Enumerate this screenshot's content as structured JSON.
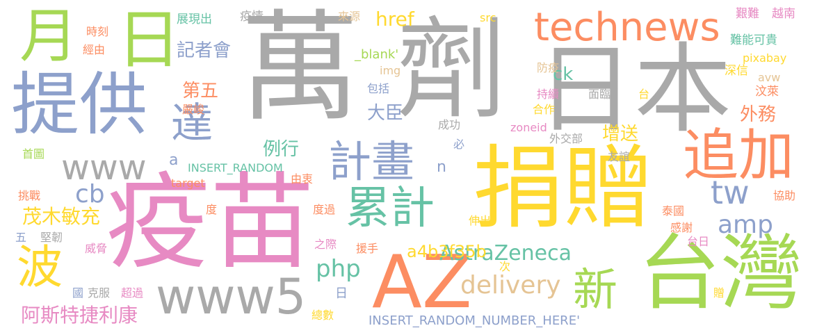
{
  "colors": {
    "grey": "#a9a9a9",
    "pink": "#e78ac3",
    "yellow": "#ffd92f",
    "green": "#a6d854",
    "orange": "#fc8d62",
    "blue": "#8da0cb",
    "teal": "#66c2a5",
    "tan": "#e5c494"
  },
  "words": [
    "萬",
    "劑",
    "日本",
    "疫苗",
    "捐贈",
    "台灣",
    "AZ",
    "technews",
    "提供",
    "日",
    "月",
    "追加",
    "www5",
    "www",
    "累計",
    "計畫",
    "新",
    "波",
    "達",
    "delivery",
    "amp",
    "tw",
    "php",
    "href",
    "cb",
    "AstraZeneca",
    "a4b3f35b",
    "茂木敏充",
    "阿斯特捷利康",
    "外務",
    "例行",
    "增送",
    "大臣",
    "第五",
    "記者會",
    "ck",
    "INSERT_RANDOM",
    "INSERT_RANDOM_NUMBER_HERE'",
    "_blank'",
    "img",
    "src",
    "pixabay",
    "avw",
    "zoneid",
    "target",
    "a",
    "n",
    "日",
    "展現出",
    "時刻",
    "經由",
    "疫情",
    "來源",
    "艱難",
    "越南",
    "難能可貴",
    "深信",
    "汶萊",
    "防疫",
    "持續",
    "合作",
    "面臨",
    "台",
    "包括",
    "嚴峻",
    "成功",
    "外交部",
    "友誼",
    "必",
    "首圖",
    "挑戰",
    "由衷",
    "度",
    "度過",
    "伸出",
    "援手",
    "之際",
    "泰國",
    "感謝",
    "台日",
    "協助",
    "五",
    "堅韌",
    "威脅",
    "次",
    "國",
    "克服",
    "超過",
    "總數",
    "贈"
  ]
}
